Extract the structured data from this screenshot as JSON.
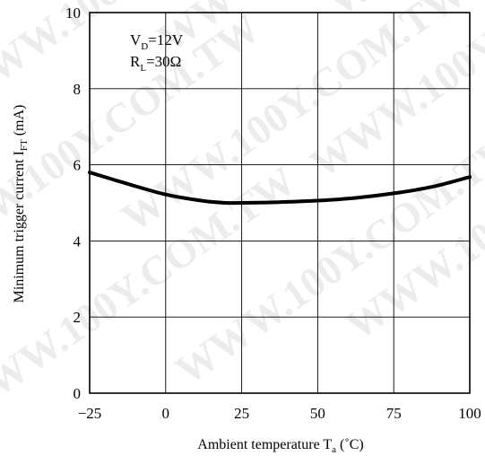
{
  "chart_data": {
    "type": "line",
    "xlabel": "Ambient temperature T",
    "xlabel_sub": "a",
    "xlabel_unit": " (˚C)",
    "ylabel": "Minimum trigger current I",
    "ylabel_sub": "FT",
    "ylabel_unit": " (mA)",
    "xlim": [
      -25,
      100
    ],
    "ylim": [
      0,
      10
    ],
    "x_ticks": [
      "−25",
      "0",
      "25",
      "50",
      "75",
      "100"
    ],
    "y_ticks": [
      "0",
      "2",
      "4",
      "6",
      "8",
      "10"
    ],
    "x_tick_values": [
      -25,
      0,
      25,
      50,
      75,
      100
    ],
    "y_tick_values": [
      0,
      2,
      4,
      6,
      8,
      10
    ],
    "grid": true,
    "annotations": [
      {
        "main": "V",
        "sub": "D",
        "rest": "=12V"
      },
      {
        "main": "R",
        "sub": "L",
        "rest": "=30Ω"
      }
    ],
    "series": [
      {
        "x": [
          -25,
          -12.5,
          0,
          12.5,
          20,
          25,
          37.5,
          50,
          62.5,
          75,
          87.5,
          100
        ],
        "y": [
          5.8,
          5.5,
          5.22,
          5.05,
          5.0,
          5.0,
          5.02,
          5.06,
          5.13,
          5.25,
          5.42,
          5.68
        ]
      }
    ],
    "watermark": "WWW.100Y.COM.TW"
  }
}
